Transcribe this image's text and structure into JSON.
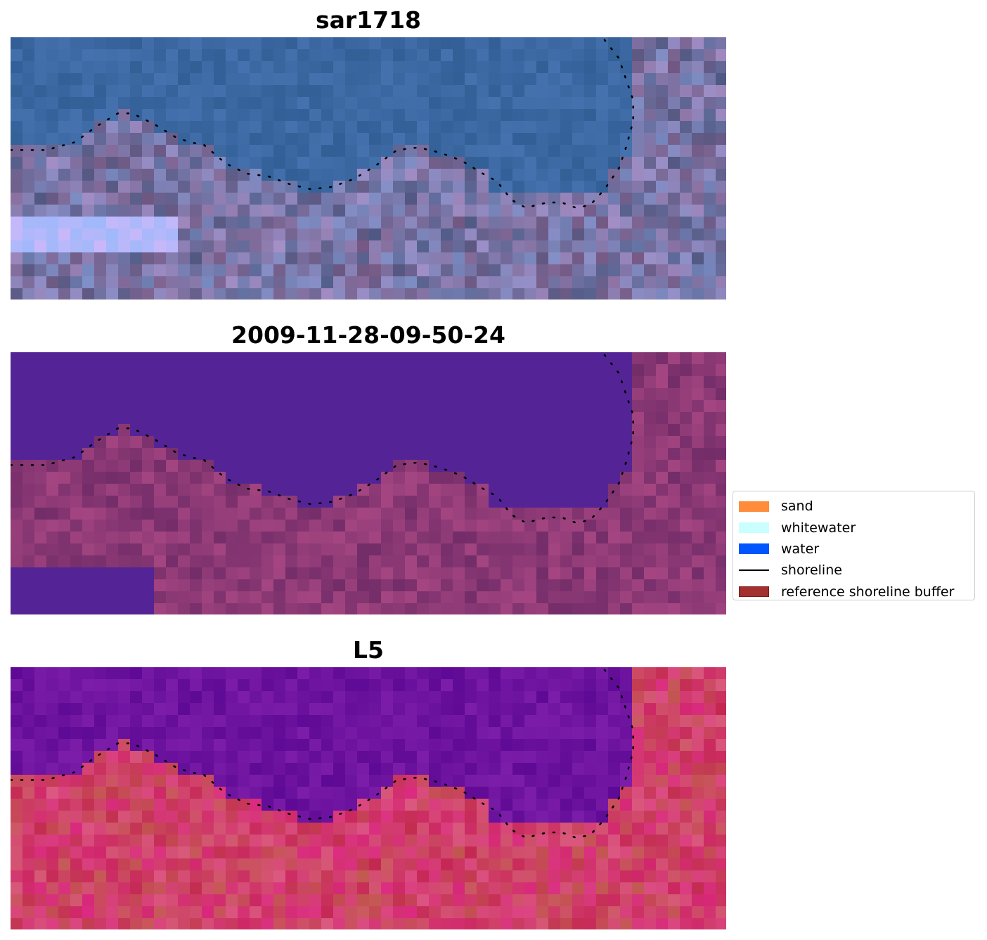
{
  "panels": [
    {
      "title": "sar1718",
      "style": "rgb"
    },
    {
      "title": "2009-11-28-09-50-24",
      "style": "classified"
    },
    {
      "title": "L5",
      "style": "index"
    }
  ],
  "legend": {
    "items": [
      {
        "label": "sand",
        "kind": "patch",
        "color": "#ff8c3a",
        "edge": "#ff8c3a"
      },
      {
        "label": "whitewater",
        "kind": "patch",
        "color": "#c9ffff",
        "edge": "#c9ffff"
      },
      {
        "label": "water",
        "kind": "patch",
        "color": "#0055ff",
        "edge": "#0055ff"
      },
      {
        "label": "shoreline",
        "kind": "line",
        "color": "#000000"
      },
      {
        "label": "reference shoreline buffer",
        "kind": "patch",
        "color": "#a3302e",
        "edge": "#7a1a18"
      }
    ]
  },
  "colors": {
    "water_class": "#542496",
    "land_class": "#74306e",
    "shoreline_dots": "#000000"
  }
}
